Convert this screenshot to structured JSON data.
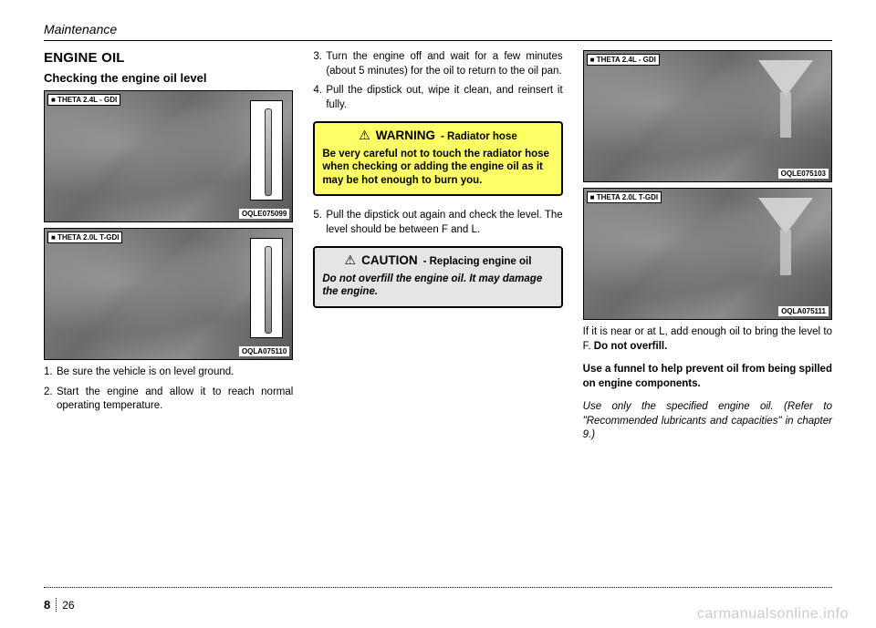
{
  "header": {
    "section": "Maintenance"
  },
  "footer": {
    "chapter": "8",
    "page": "26",
    "watermark": "carmanualsonline.info"
  },
  "col1": {
    "section_title": "ENGINE OIL",
    "subsection_title": "Checking the engine oil level",
    "figures": [
      {
        "label": "■ THETA 2.4L - GDI",
        "code": "OQLE075099"
      },
      {
        "label": "■ THETA 2.0L T-GDI",
        "code": "OQLA075110"
      }
    ],
    "steps": [
      {
        "n": "1.",
        "t": "Be sure the vehicle is on level ground."
      },
      {
        "n": "2.",
        "t": "Start the engine and allow it to reach normal operating temperature."
      }
    ]
  },
  "col2": {
    "steps_a": [
      {
        "n": "3.",
        "t": "Turn the engine off and wait for a few minutes (about 5 minutes) for the oil to return to the oil pan."
      },
      {
        "n": "4.",
        "t": "Pull the dipstick out, wipe it clean, and reinsert it fully."
      }
    ],
    "warning": {
      "kind": "WARNING",
      "topic": "- Radiator hose",
      "body": "Be very careful not to touch the radiator hose when checking or adding the engine oil as it may be hot enough to burn you."
    },
    "steps_b": [
      {
        "n": "5.",
        "t": "Pull the dipstick out again and check the level. The level should be between F and L."
      }
    ],
    "caution": {
      "kind": "CAUTION",
      "topic": "- Replacing engine oil",
      "body": "Do not overfill the engine oil. It may damage the engine."
    }
  },
  "col3": {
    "figures": [
      {
        "label": "■ THETA 2.4L - GDI",
        "code": "OQLE075103"
      },
      {
        "label": "■ THETA 2.0L T-GDI",
        "code": "OQLA075111"
      }
    ],
    "para1_a": "If it is near or at L, add enough oil to bring the level to F. ",
    "para1_b": "Do not overfill.",
    "para2": "Use a funnel to help prevent oil from being spilled on engine components.",
    "para3": "Use only the specified engine oil. (Refer to \"Recommended lubricants and capacities\" in chapter 9.)"
  }
}
